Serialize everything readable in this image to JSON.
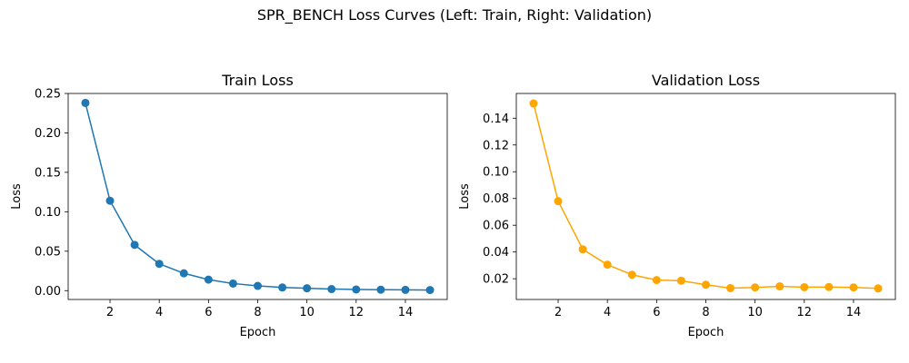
{
  "suptitle": "SPR_BENCH Loss Curves (Left: Train, Right: Validation)",
  "chart_data": [
    {
      "type": "line",
      "title": "Train Loss",
      "xlabel": "Epoch",
      "ylabel": "Loss",
      "x": [
        1,
        2,
        3,
        4,
        5,
        6,
        7,
        8,
        9,
        10,
        11,
        12,
        13,
        14,
        15
      ],
      "series": [
        {
          "color": "#1f77b4",
          "values": [
            0.238,
            0.114,
            0.058,
            0.034,
            0.022,
            0.014,
            0.009,
            0.006,
            0.004,
            0.003,
            0.002,
            0.0015,
            0.0012,
            0.001,
            0.0008
          ]
        }
      ],
      "xlim": [
        0.3,
        15.7
      ],
      "ylim": [
        -0.0112,
        0.25
      ],
      "xticks": [
        2,
        4,
        6,
        8,
        10,
        12,
        14
      ],
      "xtick_labels": [
        "2",
        "4",
        "6",
        "8",
        "10",
        "12",
        "14"
      ],
      "yticks": [
        0,
        0.05,
        0.1,
        0.15,
        0.2,
        0.25
      ],
      "ytick_labels": [
        "0.00",
        "0.05",
        "0.10",
        "0.15",
        "0.20",
        "0.25"
      ],
      "grid": false
    },
    {
      "type": "line",
      "title": "Validation Loss",
      "xlabel": "Epoch",
      "ylabel": "Loss",
      "x": [
        1,
        2,
        3,
        4,
        5,
        6,
        7,
        8,
        9,
        10,
        11,
        12,
        13,
        14,
        15
      ],
      "series": [
        {
          "color": "#ffa500",
          "values": [
            0.151,
            0.078,
            0.042,
            0.0305,
            0.023,
            0.019,
            0.0185,
            0.0155,
            0.013,
            0.0135,
            0.0143,
            0.0137,
            0.0138,
            0.0135,
            0.0128
          ]
        }
      ],
      "xlim": [
        0.3,
        15.7
      ],
      "ylim": [
        0.0045,
        0.1585
      ],
      "xticks": [
        2,
        4,
        6,
        8,
        10,
        12,
        14
      ],
      "xtick_labels": [
        "2",
        "4",
        "6",
        "8",
        "10",
        "12",
        "14"
      ],
      "yticks": [
        0.02,
        0.04,
        0.06,
        0.08,
        0.1,
        0.12,
        0.14
      ],
      "ytick_labels": [
        "0.02",
        "0.04",
        "0.06",
        "0.08",
        "0.10",
        "0.12",
        "0.14"
      ],
      "grid": false
    }
  ]
}
